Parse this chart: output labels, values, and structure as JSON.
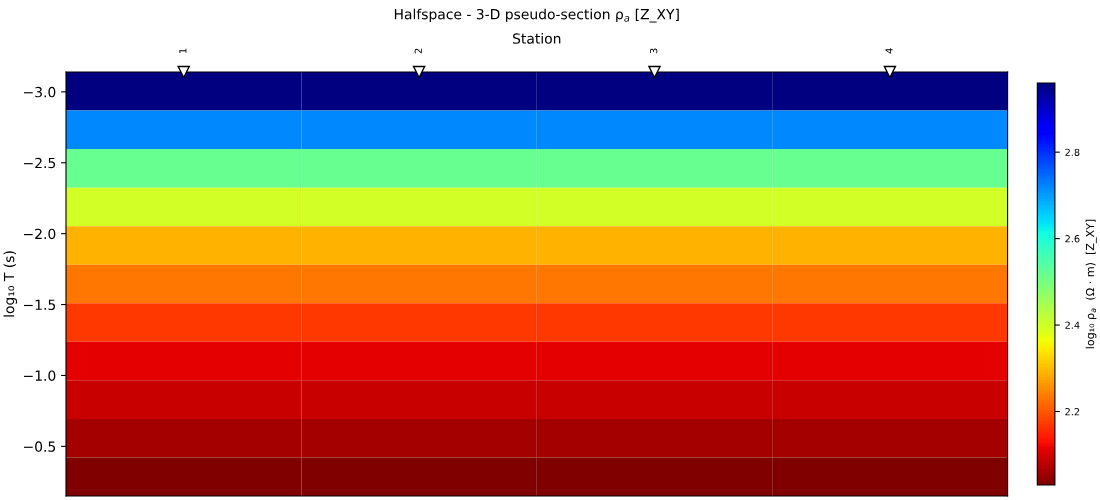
{
  "chart_data": {
    "type": "heatmap",
    "title": "Halfspace - 3-D pseudo-section ρ$_{a}$ [Z_XY]",
    "xlabel": "Station",
    "ylabel": "log₁₀ T (s)",
    "clabel": "log₁₀ ρ$_{a}$  (Ω · m)  [Z_XY]",
    "categories": [
      "1",
      "2",
      "3",
      "4"
    ],
    "cells": [
      [
        2.96,
        2.96,
        2.96,
        2.96
      ],
      [
        2.72,
        2.72,
        2.72,
        2.72
      ],
      [
        2.52,
        2.52,
        2.52,
        2.52
      ],
      [
        2.4,
        2.4,
        2.4,
        2.4
      ],
      [
        2.29,
        2.29,
        2.29,
        2.29
      ],
      [
        2.23,
        2.23,
        2.23,
        2.23
      ],
      [
        2.17,
        2.17,
        2.17,
        2.17
      ],
      [
        2.11,
        2.11,
        2.11,
        2.11
      ],
      [
        2.09,
        2.09,
        2.09,
        2.09
      ],
      [
        2.06,
        2.06,
        2.06,
        2.06
      ],
      [
        2.03,
        2.03,
        2.03,
        2.03
      ]
    ],
    "ylim": [
      -0.15,
      -3.14
    ],
    "yticks": [
      {
        "value": -3,
        "label": "−3.0"
      },
      {
        "value": -2.5,
        "label": "−2.5"
      },
      {
        "value": -2,
        "label": "−2.0"
      },
      {
        "value": -1.5,
        "label": "−1.5"
      },
      {
        "value": -1,
        "label": "−1.0"
      },
      {
        "value": -0.5,
        "label": "−0.5"
      }
    ],
    "clim": [
      2.03,
      2.96
    ],
    "cticks": [
      2.2,
      2.4,
      2.6,
      2.8
    ]
  }
}
